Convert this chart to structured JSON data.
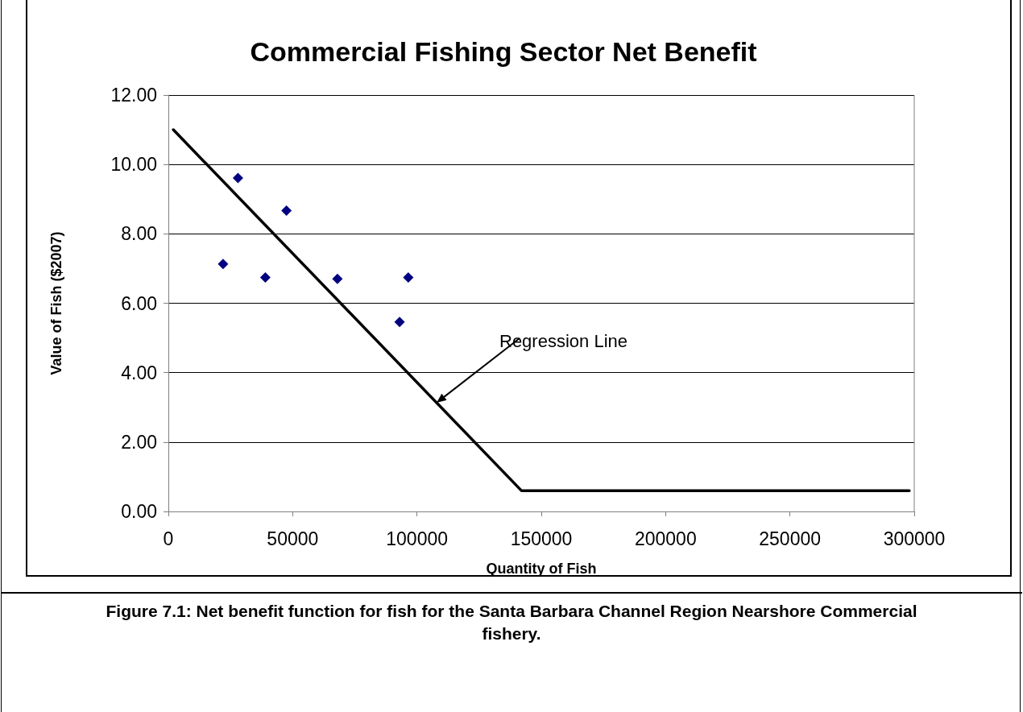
{
  "chart_data": {
    "type": "scatter",
    "title": "Commercial Fishing Sector Net Benefit",
    "xlabel": "Quantity of Fish",
    "ylabel": "Value of Fish ($2007)",
    "series": [
      {
        "color": "#000080",
        "marker": "diamond",
        "x": [
          22000,
          28000,
          39000,
          47500,
          68000,
          93000,
          96500
        ],
        "values": [
          7.13,
          9.61,
          6.74,
          8.67,
          6.7,
          5.46,
          6.74
        ]
      },
      {
        "type": "line",
        "color": "#000000",
        "marker": "none",
        "line_style": "solid",
        "x": [
          2000,
          142000,
          298000
        ],
        "values": [
          11.0,
          0.6,
          0.6
        ]
      }
    ],
    "xlim": [
      0,
      300000
    ],
    "xticks": [
      0,
      50000,
      100000,
      150000,
      200000,
      250000,
      300000
    ],
    "ylim": [
      0,
      12
    ],
    "yticks": [
      {
        "value": 0,
        "label": "0.00"
      },
      {
        "value": 2,
        "label": "2.00"
      },
      {
        "value": 4,
        "label": "4.00"
      },
      {
        "value": 6,
        "label": "6.00"
      },
      {
        "value": 8,
        "label": "8.00"
      },
      {
        "value": 10,
        "label": "10.00"
      },
      {
        "value": 12,
        "label": "12.00"
      }
    ],
    "grid": "y",
    "annotations": [
      "Regression Line",
      "Figure 7.1: Net benefit function for fish for the Santa Barbara Channel Region Nearshore Commercial fishery."
    ]
  }
}
